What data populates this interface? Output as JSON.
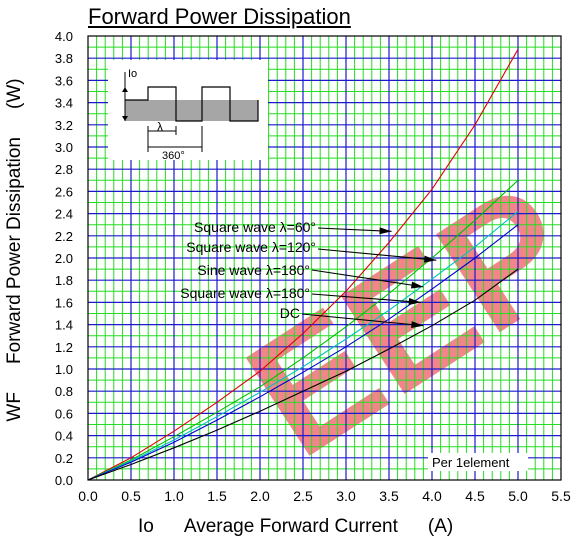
{
  "chart_data": {
    "type": "line",
    "title": "Forward Power Dissipation",
    "ylabel_prefix": "WF",
    "ylabel": "Forward Power Dissipation",
    "ylabel_unit": "(W)",
    "xlabel_prefix": "Io",
    "xlabel": "Average Forward Current",
    "xlabel_unit": "(A)",
    "xlim": [
      0,
      5.5
    ],
    "ylim": [
      0,
      4.0
    ],
    "x_ticks": [
      0,
      0.5,
      1.0,
      1.5,
      2.0,
      2.5,
      3.0,
      3.5,
      4.0,
      4.5,
      5.0,
      5.5
    ],
    "x_tick_labels": [
      "0.0",
      "0.5",
      "1.0",
      "1.5",
      "2.0",
      "2.5",
      "3.0",
      "3.5",
      "4.0",
      "4.5",
      "5.0",
      "5.5"
    ],
    "y_ticks": [
      0,
      0.2,
      0.4,
      0.6,
      0.8,
      1.0,
      1.2,
      1.4,
      1.6,
      1.8,
      2.0,
      2.2,
      2.4,
      2.6,
      2.8,
      3.0,
      3.2,
      3.4,
      3.6,
      3.8,
      4.0
    ],
    "y_tick_labels": [
      "0.0",
      "0.2",
      "0.4",
      "0.6",
      "0.8",
      "1.0",
      "1.2",
      "1.4",
      "1.6",
      "1.8",
      "2.0",
      "2.2",
      "2.4",
      "2.6",
      "2.8",
      "3.0",
      "3.2",
      "3.4",
      "3.6",
      "3.8",
      "4.0"
    ],
    "grid": true,
    "note": "Per 1element",
    "series": [
      {
        "name": "Square wave  λ=60°",
        "color": "#e00000",
        "x": [
          0,
          0.5,
          1.0,
          1.5,
          2.0,
          2.5,
          3.0,
          3.5,
          4.0,
          4.5,
          5.0
        ],
        "y": [
          0,
          0.2,
          0.44,
          0.7,
          0.98,
          1.32,
          1.7,
          2.14,
          2.62,
          3.2,
          3.88
        ]
      },
      {
        "name": "Square wave  λ=120°",
        "color": "#00c000",
        "x": [
          0,
          0.5,
          1.0,
          1.5,
          2.0,
          2.5,
          3.0,
          3.5,
          4.0,
          4.5,
          5.0
        ],
        "y": [
          0,
          0.18,
          0.39,
          0.61,
          0.84,
          1.1,
          1.38,
          1.68,
          2.0,
          2.34,
          2.7
        ]
      },
      {
        "name": "Sine wave  λ=180°",
        "color": "#00c0c0",
        "x": [
          0,
          0.5,
          1.0,
          1.5,
          2.0,
          2.5,
          3.0,
          3.5,
          4.0,
          4.5,
          5.0
        ],
        "y": [
          0,
          0.17,
          0.36,
          0.57,
          0.79,
          1.02,
          1.27,
          1.53,
          1.81,
          2.1,
          2.42
        ]
      },
      {
        "name": "Square wave  λ=180°",
        "color": "#0000d0",
        "x": [
          0,
          0.5,
          1.0,
          1.5,
          2.0,
          2.5,
          3.0,
          3.5,
          4.0,
          4.5,
          5.0
        ],
        "y": [
          0,
          0.16,
          0.34,
          0.54,
          0.75,
          0.97,
          1.2,
          1.45,
          1.72,
          2.0,
          2.3
        ]
      },
      {
        "name": "DC",
        "color": "#000000",
        "x": [
          0,
          0.5,
          1.0,
          1.5,
          2.0,
          2.5,
          3.0,
          3.5,
          4.0,
          4.5,
          5.0
        ],
        "y": [
          0,
          0.14,
          0.29,
          0.45,
          0.62,
          0.8,
          0.98,
          1.18,
          1.39,
          1.62,
          1.9
        ]
      }
    ],
    "annotations": [
      {
        "text": "Square wave  λ=60°",
        "arrow_to": [
          3.53,
          2.24
        ]
      },
      {
        "text": "Square wave  λ=120°",
        "arrow_to": [
          4.05,
          1.98
        ]
      },
      {
        "text": "Sine wave  λ=180°",
        "arrow_to": [
          3.9,
          1.74
        ]
      },
      {
        "text": "Square wave  λ=180°",
        "arrow_to": [
          3.87,
          1.6
        ]
      },
      {
        "text": "DC",
        "arrow_to": [
          3.9,
          1.39
        ]
      }
    ],
    "inset": {
      "label_io": "Io",
      "label_lambda": "λ",
      "label_period": "360°"
    },
    "watermark": "EEP"
  }
}
